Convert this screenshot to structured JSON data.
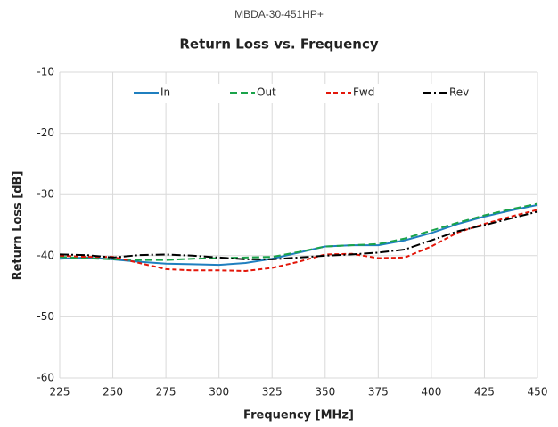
{
  "chart_data": {
    "type": "line",
    "header": "MBDA-30-451HP+",
    "title": "Return Loss vs. Frequency",
    "x_label": "Frequency [MHz]",
    "y_label": "Return Loss [dB]",
    "x": [
      225,
      237.5,
      250,
      262.5,
      275,
      287.5,
      300,
      312.5,
      325,
      337.5,
      350,
      362.5,
      375,
      387.5,
      400,
      412.5,
      425,
      437.5,
      450
    ],
    "series": [
      {
        "name": "In",
        "color": "#1f7fbf",
        "dash": "none",
        "values": [
          -40.5,
          -40.3,
          -40.6,
          -41.0,
          -41.3,
          -41.4,
          -41.5,
          -41.2,
          -40.5,
          -39.5,
          -38.5,
          -38.3,
          -38.3,
          -37.5,
          -36.3,
          -34.8,
          -33.6,
          -32.6,
          -31.7
        ]
      },
      {
        "name": "Out",
        "color": "#1aa34a",
        "dash": "8 4",
        "values": [
          -40.2,
          -40.4,
          -40.6,
          -40.7,
          -40.7,
          -40.5,
          -40.4,
          -40.3,
          -40.2,
          -39.4,
          -38.5,
          -38.3,
          -38.1,
          -37.2,
          -35.9,
          -34.6,
          -33.4,
          -32.4,
          -31.5
        ]
      },
      {
        "name": "Fwd",
        "color": "#e3170a",
        "dash": "5 3",
        "values": [
          -40.0,
          -40.2,
          -40.2,
          -41.2,
          -42.2,
          -42.4,
          -42.4,
          -42.5,
          -42.0,
          -41.0,
          -39.8,
          -39.7,
          -40.4,
          -40.3,
          -38.5,
          -36.2,
          -34.8,
          -33.6,
          -32.5
        ]
      },
      {
        "name": "Rev",
        "color": "#000000",
        "dash": "10 3 2 3",
        "values": [
          -39.8,
          -39.9,
          -40.3,
          -39.9,
          -39.8,
          -40.0,
          -40.3,
          -40.6,
          -40.6,
          -40.3,
          -40.0,
          -39.8,
          -39.5,
          -39.0,
          -37.5,
          -36.0,
          -35.0,
          -33.9,
          -32.8
        ]
      }
    ],
    "xlim": [
      225,
      450
    ],
    "xticks": [
      225,
      250,
      275,
      300,
      325,
      350,
      375,
      400,
      425,
      450
    ],
    "ylim": [
      -60,
      -10
    ],
    "yticks": [
      -60,
      -50,
      -40,
      -30,
      -20,
      -10
    ],
    "grid": true,
    "legend": "top"
  }
}
